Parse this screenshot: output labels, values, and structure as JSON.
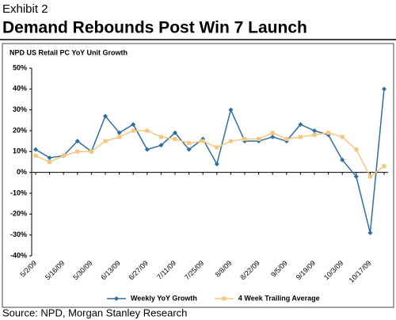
{
  "chart_data": {
    "type": "line",
    "exhibit": "Exhibit 2",
    "title": "Demand Rebounds Post Win 7 Launch",
    "subtitle": "NPD US Retail PC YoY Unit Growth",
    "source": "Source: NPD, Morgan Stanley Research",
    "categories": [
      "5/2/09",
      null,
      "5/16/09",
      null,
      "5/30/09",
      null,
      "6/13/09",
      null,
      "6/27/09",
      null,
      "7/11/09",
      null,
      "7/25/09",
      null,
      "8/8/09",
      null,
      "8/22/09",
      null,
      "9/5/09",
      null,
      "9/19/09",
      null,
      "10/3/09",
      null,
      "10/17/09",
      null
    ],
    "series": [
      {
        "name": "Weekly YoY Growth",
        "color": "#2e6fa0",
        "marker": "diamond",
        "values": [
          11,
          7,
          8,
          15,
          10,
          27,
          19,
          23,
          11,
          13,
          19,
          11,
          16,
          4,
          30,
          15,
          15,
          17,
          15,
          23,
          20,
          18,
          6,
          -2,
          -29,
          40
        ]
      },
      {
        "name": "4 Week Trailing Average",
        "color": "#f5c77e",
        "marker": "square",
        "values": [
          8,
          5,
          8,
          10,
          10,
          15,
          17,
          20,
          20,
          17,
          16,
          14,
          15,
          12,
          15,
          16,
          16,
          19,
          16,
          17,
          18,
          19,
          17,
          11,
          -2,
          3
        ]
      }
    ],
    "ylim": [
      -40,
      50
    ],
    "yticks": [
      {
        "value": -40,
        "label": "-40%"
      },
      {
        "value": -30,
        "label": "-30%"
      },
      {
        "value": -20,
        "label": "-20%"
      },
      {
        "value": -10,
        "label": "-10%"
      },
      {
        "value": 0,
        "label": "0%"
      },
      {
        "value": 10,
        "label": "10%"
      },
      {
        "value": 20,
        "label": "20%"
      },
      {
        "value": 30,
        "label": "30%"
      },
      {
        "value": 40,
        "label": "40%"
      },
      {
        "value": 50,
        "label": "50%"
      }
    ],
    "grid": false,
    "legend": "bottom"
  }
}
